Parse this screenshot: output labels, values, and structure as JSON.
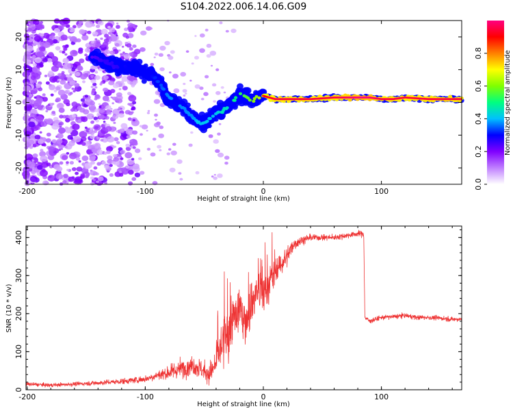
{
  "title": "S104.2022.006.14.06.G09",
  "chart_data": [
    {
      "type": "heatmap",
      "title": "S104.2022.006.14.06.G09",
      "xlabel": "Height of straight line (km)",
      "ylabel": "Frequency (Hz)",
      "xlim": [
        -201,
        168
      ],
      "ylim": [
        -25,
        25
      ],
      "xticks": [
        -200,
        -100,
        0,
        100
      ],
      "yticks": [
        -20,
        -10,
        0,
        10,
        20
      ],
      "colorbar": {
        "label": "Normalized spectral amplitude",
        "range": [
          0,
          1
        ],
        "ticks": [
          0.0,
          0.2,
          0.4,
          0.6,
          0.8
        ],
        "colors": [
          "#ffffff",
          "#c080ff",
          "#8000ff",
          "#0000ff",
          "#00c0ff",
          "#00ff80",
          "#80ff00",
          "#ffff00",
          "#ff8000",
          "#ff0000",
          "#ff0080"
        ]
      },
      "ridge": {
        "x": [
          -145,
          -135,
          -125,
          -115,
          -105,
          -95,
          -88,
          -80,
          -70,
          -60,
          -55,
          -50,
          -45,
          -40,
          -35,
          -30,
          -25,
          -20,
          -15,
          -10,
          -5,
          0,
          10,
          20,
          40,
          60,
          80,
          90,
          100,
          110,
          120,
          140,
          168
        ],
        "y": [
          14,
          12.5,
          11,
          11,
          10,
          8.5,
          6,
          1.5,
          -1,
          -4.5,
          -6,
          -6.5,
          -5,
          -3,
          -3,
          -1,
          0.5,
          2.5,
          2,
          0.5,
          1.5,
          2,
          1,
          1,
          1,
          1.5,
          1.5,
          1.5,
          1,
          1,
          1.5,
          1,
          1
        ],
        "amplitude": [
          0.3,
          0.35,
          0.35,
          0.4,
          0.4,
          0.4,
          0.45,
          0.5,
          0.5,
          0.5,
          0.55,
          0.55,
          0.55,
          0.55,
          0.6,
          0.6,
          0.65,
          0.7,
          0.75,
          0.8,
          0.85,
          0.9,
          0.95,
          0.95,
          0.95,
          0.95,
          1.0,
          1.0,
          0.95,
          0.95,
          0.95,
          0.95,
          0.95
        ]
      }
    },
    {
      "type": "line",
      "xlabel": "Height of straight line (km)",
      "ylabel": "SNR (10 * v/v)",
      "xlim": [
        -201,
        168
      ],
      "ylim": [
        0,
        430
      ],
      "xticks": [
        -200,
        -100,
        0,
        100
      ],
      "yticks": [
        0,
        100,
        200,
        300,
        400
      ],
      "series": [
        {
          "color": "#ee3333",
          "x": [
            -201,
            -180,
            -160,
            -140,
            -120,
            -100,
            -90,
            -80,
            -70,
            -60,
            -55,
            -50,
            -45,
            -40,
            -35,
            -30,
            -25,
            -20,
            -15,
            -10,
            -5,
            0,
            5,
            10,
            15,
            20,
            25,
            30,
            40,
            50,
            60,
            70,
            80,
            85,
            86,
            90,
            100,
            110,
            120,
            130,
            140,
            150,
            160,
            168
          ],
          "y": [
            15,
            12,
            15,
            18,
            22,
            28,
            38,
            45,
            55,
            65,
            58,
            48,
            40,
            70,
            120,
            150,
            190,
            210,
            180,
            230,
            260,
            250,
            280,
            310,
            330,
            350,
            380,
            390,
            400,
            400,
            400,
            405,
            410,
            410,
            190,
            180,
            190,
            192,
            195,
            190,
            190,
            188,
            185,
            185
          ],
          "noise": [
            8,
            8,
            8,
            10,
            12,
            15,
            20,
            30,
            40,
            40,
            40,
            40,
            40,
            70,
            110,
            120,
            110,
            100,
            100,
            100,
            90,
            80,
            70,
            60,
            50,
            40,
            25,
            20,
            15,
            12,
            12,
            12,
            12,
            12,
            10,
            10,
            10,
            10,
            10,
            10,
            10,
            10,
            10,
            10
          ]
        }
      ]
    }
  ]
}
